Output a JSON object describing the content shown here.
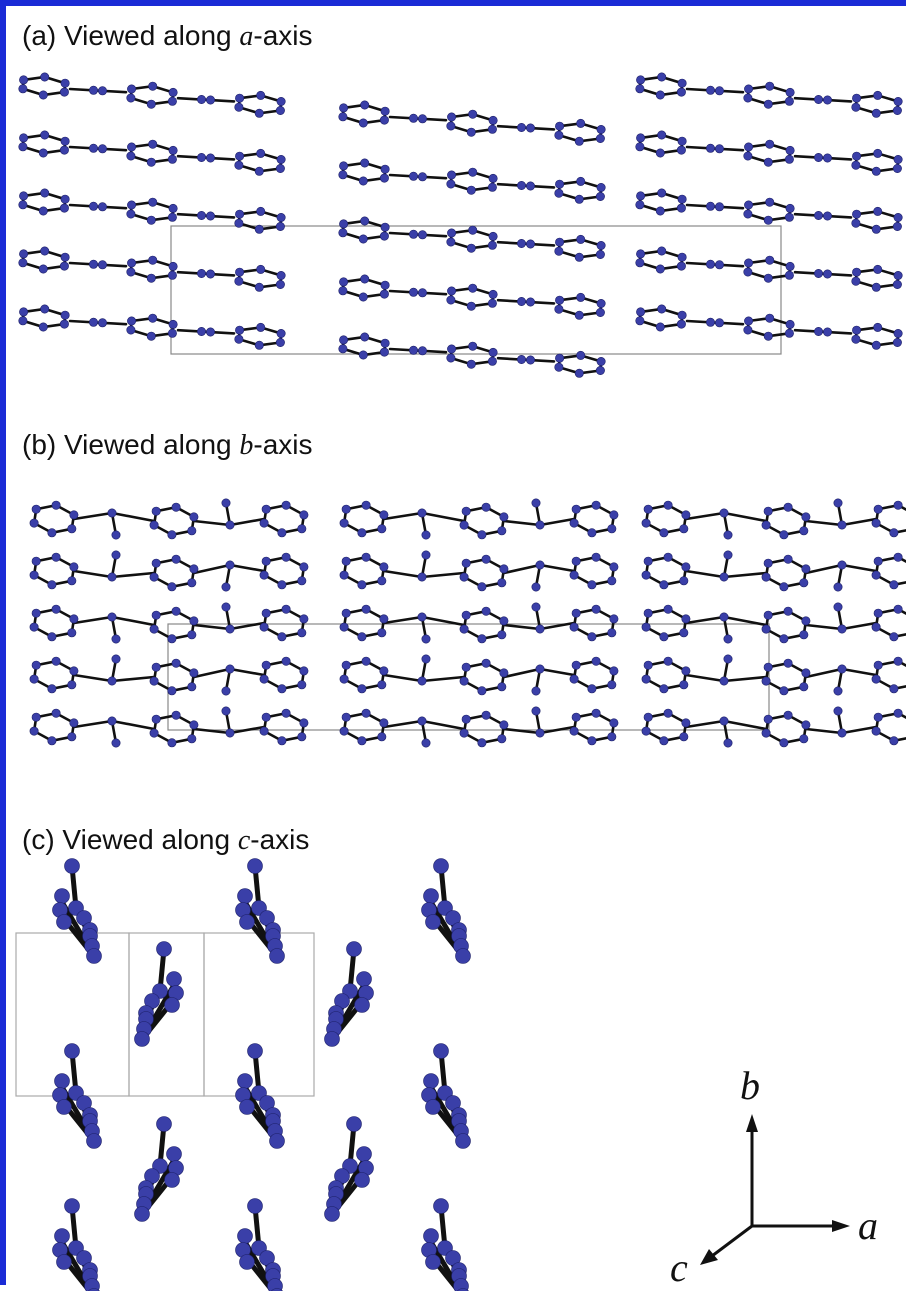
{
  "panels": [
    {
      "id": "a",
      "prefix": "(a) Viewed along ",
      "axis": "a",
      "suffix": "-axis"
    },
    {
      "id": "b",
      "prefix": "(b) Viewed along ",
      "axis": "b",
      "suffix": "-axis"
    },
    {
      "id": "c",
      "prefix": "(c) Viewed along ",
      "axis": "c",
      "suffix": "-axis"
    }
  ],
  "axes_legend": {
    "a": "a",
    "b": "b",
    "c": "c"
  },
  "colors": {
    "atom": "#3a3fa8",
    "bond": "#111111",
    "cell": "#888888",
    "border": "#1a2bd6"
  }
}
